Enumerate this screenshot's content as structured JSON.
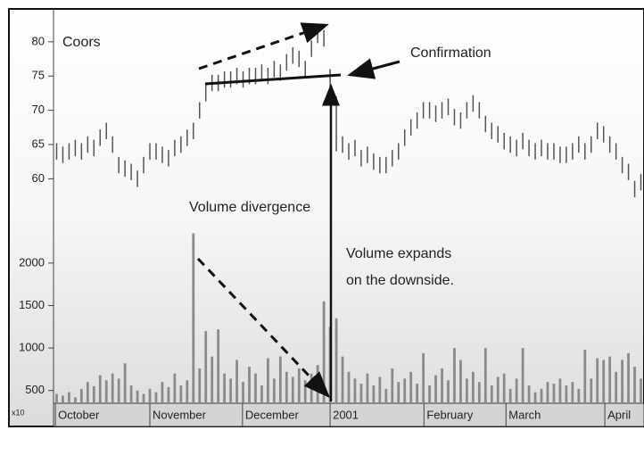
{
  "chart_data": {
    "type": "ohlc",
    "title": "Coors",
    "annotations": [
      "Confirmation",
      "Volume divergence",
      "Volume expands",
      "on the downside."
    ],
    "volume_unit": "x10",
    "xlim": [
      0,
      95
    ],
    "xticks": [
      {
        "value": 0.3,
        "label": "October"
      },
      {
        "value": 15.5,
        "label": "November"
      },
      {
        "value": 30.4,
        "label": "December"
      },
      {
        "value": 44.5,
        "label": "2001"
      },
      {
        "value": 59.6,
        "label": "February"
      },
      {
        "value": 72.8,
        "label": "March"
      },
      {
        "value": 88.7,
        "label": "April"
      }
    ],
    "ylim": [
      52.5,
      84.8
    ],
    "yticks": [
      60,
      65,
      70,
      75,
      80
    ],
    "y2lim": [
      350,
      2450
    ],
    "y2ticks": [
      500,
      1000,
      1500,
      2000
    ],
    "color": "#555555",
    "volume_color": "#8a8a8a",
    "high": [
      65.2,
      64.7,
      65.2,
      65.7,
      65.2,
      66.2,
      65.7,
      67.2,
      68.2,
      66.2,
      63.2,
      62.7,
      62.2,
      61.2,
      63.2,
      65.2,
      65.2,
      64.7,
      64.2,
      65.7,
      66.2,
      67.2,
      68.2,
      71.2,
      73.7,
      75.2,
      75.2,
      75.7,
      75.7,
      76.2,
      75.7,
      76.2,
      76.2,
      76.7,
      76.2,
      77.2,
      76.7,
      78.2,
      79.2,
      78.7,
      77.2,
      80.2,
      82.2,
      81.7,
      76,
      72,
      66.2,
      65.2,
      65.7,
      64.2,
      64.7,
      63.7,
      63.2,
      63.2,
      64.2,
      65.2,
      67.2,
      68.7,
      69.7,
      71.2,
      71.2,
      70.7,
      71.2,
      71.7,
      70.2,
      69.7,
      71.2,
      72.2,
      71.2,
      69.2,
      68.2,
      67.7,
      66.7,
      66.2,
      65.7,
      66.7,
      65.7,
      65.2,
      65.7,
      65.2,
      65.2,
      64.7,
      64.7,
      65.2,
      66.2,
      65.2,
      66.2,
      68.2,
      67.7,
      66.2,
      65.2,
      63.2,
      62.2,
      59.7,
      60.7
    ],
    "low": [
      62.8,
      62.3,
      62.8,
      63.3,
      62.8,
      63.8,
      63.3,
      64.8,
      65.8,
      63.8,
      60.8,
      60.3,
      59.8,
      58.8,
      60.8,
      62.8,
      62.8,
      62.3,
      61.8,
      63.3,
      63.8,
      64.8,
      65.8,
      68.8,
      71.3,
      72.8,
      72.8,
      73.3,
      73.3,
      73.8,
      73.3,
      73.8,
      73.8,
      74.3,
      73.8,
      74.8,
      74.3,
      75.8,
      76.8,
      76.3,
      74.8,
      77.8,
      79.8,
      79.3,
      72,
      64,
      63.8,
      62.8,
      63.3,
      61.8,
      62.3,
      61.3,
      60.8,
      60.8,
      61.8,
      62.8,
      64.8,
      66.3,
      67.3,
      68.8,
      68.8,
      68.3,
      68.8,
      69.3,
      67.8,
      67.3,
      68.8,
      69.8,
      68.8,
      66.8,
      65.8,
      65.3,
      64.3,
      63.8,
      63.3,
      64.3,
      63.3,
      62.8,
      63.3,
      62.8,
      62.8,
      62.3,
      62.3,
      62.8,
      63.8,
      62.8,
      63.8,
      65.8,
      65.3,
      63.8,
      62.8,
      60.8,
      59.8,
      57.3,
      58.3
    ],
    "volume": [
      460,
      440,
      480,
      420,
      520,
      600,
      550,
      680,
      620,
      700,
      640,
      820,
      560,
      500,
      460,
      520,
      480,
      600,
      540,
      700,
      560,
      620,
      2350,
      760,
      1200,
      900,
      1220,
      700,
      640,
      860,
      600,
      780,
      700,
      560,
      880,
      640,
      900,
      720,
      660,
      760,
      620,
      700,
      800,
      1550,
      1250,
      1350,
      900,
      720,
      640,
      580,
      700,
      560,
      660,
      520,
      760,
      600,
      640,
      720,
      580,
      940,
      560,
      680,
      760,
      620,
      1000,
      860,
      640,
      720,
      600,
      1000,
      560,
      660,
      700,
      520,
      640,
      1000,
      560,
      480,
      520,
      600,
      580,
      640,
      560,
      600,
      520,
      980,
      640,
      880,
      860,
      900,
      720,
      860,
      940,
      780,
      640
    ]
  }
}
